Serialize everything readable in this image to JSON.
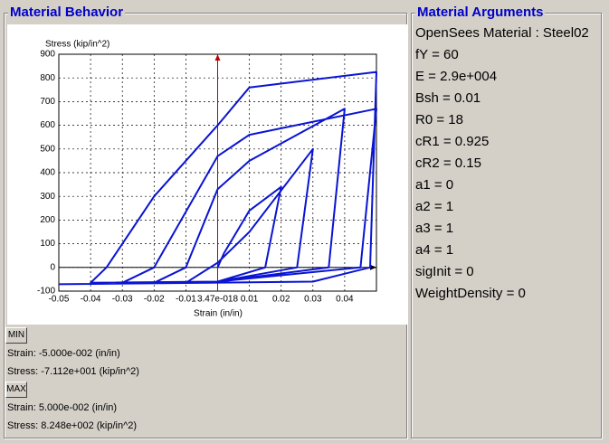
{
  "left_title": "Material Behavior",
  "right_title": "Material Arguments",
  "chart_data": {
    "type": "line",
    "y_label": "Stress (kip/in^2)",
    "x_label": "Strain (in/in)",
    "x": [
      0,
      0.002,
      0.01,
      0.02,
      0.015,
      0.0,
      -0.01,
      0.0,
      0.01,
      0.03,
      0.025,
      0.0,
      -0.02,
      -0.01,
      0.0,
      0.01,
      0.04,
      0.035,
      0.0,
      -0.03,
      -0.02,
      0.0,
      0.01,
      0.05,
      0.045,
      0.0,
      -0.04,
      -0.035,
      -0.02,
      0.0,
      0.01,
      0.05,
      0.048,
      0.03,
      -0.05
    ],
    "values": [
      0,
      60,
      240,
      340,
      0,
      -60,
      -65,
      20,
      150,
      500,
      0,
      -60,
      -65,
      0,
      330,
      450,
      670,
      0,
      -60,
      -65,
      0,
      470,
      560,
      670,
      0,
      -60,
      -65,
      0,
      300,
      600,
      760,
      825,
      0,
      -60,
      -71.12
    ],
    "color": "#0a14d2",
    "xlim": [
      -0.05,
      0.05
    ],
    "xticks": [
      -0.05,
      -0.04,
      -0.03,
      -0.02,
      -0.01,
      {
        "value": 3.47e-18,
        "label": "3.47e-018"
      },
      0.01,
      0.02,
      0.03,
      0.04
    ],
    "ylim": [
      -100,
      900
    ],
    "yticks": [
      -100,
      0,
      100,
      200,
      300,
      400,
      500,
      600,
      700,
      800,
      900
    ],
    "grid": true
  },
  "min_button": "MIN",
  "min_strain": "Strain: -5.000e-002 (in/in)",
  "min_stress": "Stress: -7.112e+001 (kip/in^2)",
  "max_button": "MAX",
  "max_strain": "Strain: 5.000e-002 (in/in)",
  "max_stress": "Stress: 8.248e+002 (kip/in^2)",
  "arguments": [
    "OpenSees Material : Steel02",
    "fY = 60",
    "E = 2.9e+004",
    "Bsh = 0.01",
    "R0 = 18",
    "cR1 = 0.925",
    "cR2 = 0.15",
    "a1 = 0",
    "a2 = 1",
    "a3 = 1",
    "a4 = 1",
    "sigInit = 0",
    "WeightDensity = 0"
  ]
}
